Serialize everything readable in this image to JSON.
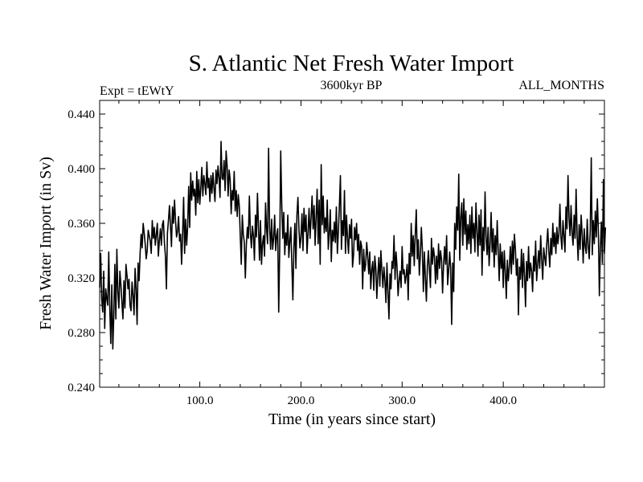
{
  "chart_data": {
    "type": "line",
    "title": "S. Atlantic Net Fresh Water Import",
    "subtitle_left": "Expt = tEWtY",
    "subtitle_center": "3600kyr BP",
    "subtitle_right": "ALL_MONTHS",
    "xlabel": "Time (in years since start)",
    "ylabel": "Fresh Water Import (in Sv)",
    "xlim": [
      1,
      500
    ],
    "ylim": [
      0.24,
      0.45
    ],
    "x_ticks": [
      100,
      200,
      300,
      400
    ],
    "x_tick_labels": [
      "100.0",
      "200.0",
      "300.0",
      "400.0"
    ],
    "y_ticks": [
      0.24,
      0.28,
      0.32,
      0.36,
      0.4,
      0.44
    ],
    "y_tick_labels": [
      "0.240",
      "0.280",
      "0.320",
      "0.360",
      "0.400",
      "0.440"
    ],
    "x_minor_step": 20,
    "y_minor_step": 0.01,
    "series": [
      {
        "name": "fresh water import",
        "x_start": 1,
        "x_step": 1,
        "values": [
          0.313,
          0.338,
          0.305,
          0.295,
          0.325,
          0.283,
          0.312,
          0.305,
          0.3,
          0.339,
          0.298,
          0.272,
          0.315,
          0.268,
          0.293,
          0.33,
          0.29,
          0.341,
          0.31,
          0.298,
          0.325,
          0.315,
          0.302,
          0.29,
          0.318,
          0.298,
          0.33,
          0.322,
          0.312,
          0.319,
          0.3,
          0.296,
          0.317,
          0.307,
          0.293,
          0.327,
          0.312,
          0.286,
          0.331,
          0.318,
          0.338,
          0.352,
          0.342,
          0.36,
          0.353,
          0.345,
          0.334,
          0.34,
          0.355,
          0.351,
          0.347,
          0.338,
          0.362,
          0.349,
          0.357,
          0.344,
          0.352,
          0.36,
          0.336,
          0.347,
          0.356,
          0.344,
          0.359,
          0.362,
          0.346,
          0.336,
          0.312,
          0.353,
          0.362,
          0.373,
          0.358,
          0.343,
          0.372,
          0.36,
          0.377,
          0.362,
          0.35,
          0.354,
          0.365,
          0.347,
          0.352,
          0.33,
          0.352,
          0.379,
          0.338,
          0.363,
          0.344,
          0.358,
          0.387,
          0.357,
          0.397,
          0.377,
          0.391,
          0.38,
          0.385,
          0.366,
          0.398,
          0.375,
          0.392,
          0.374,
          0.386,
          0.401,
          0.38,
          0.395,
          0.389,
          0.381,
          0.405,
          0.386,
          0.393,
          0.376,
          0.395,
          0.382,
          0.397,
          0.386,
          0.376,
          0.399,
          0.389,
          0.402,
          0.393,
          0.379,
          0.42,
          0.393,
          0.392,
          0.406,
          0.384,
          0.413,
          0.402,
          0.38,
          0.399,
          0.392,
          0.367,
          0.384,
          0.377,
          0.398,
          0.369,
          0.384,
          0.365,
          0.381,
          0.373,
          0.351,
          0.33,
          0.366,
          0.352,
          0.346,
          0.32,
          0.344,
          0.357,
          0.349,
          0.38,
          0.353,
          0.342,
          0.358,
          0.351,
          0.333,
          0.366,
          0.35,
          0.382,
          0.357,
          0.333,
          0.362,
          0.33,
          0.345,
          0.351,
          0.336,
          0.375,
          0.356,
          0.345,
          0.415,
          0.357,
          0.341,
          0.363,
          0.341,
          0.349,
          0.366,
          0.34,
          0.351,
          0.356,
          0.295,
          0.342,
          0.413,
          0.374,
          0.349,
          0.368,
          0.337,
          0.353,
          0.344,
          0.366,
          0.335,
          0.347,
          0.357,
          0.33,
          0.304,
          0.342,
          0.36,
          0.327,
          0.366,
          0.379,
          0.356,
          0.342,
          0.35,
          0.367,
          0.34,
          0.371,
          0.354,
          0.366,
          0.338,
          0.353,
          0.371,
          0.349,
          0.364,
          0.38,
          0.356,
          0.373,
          0.344,
          0.365,
          0.385,
          0.345,
          0.377,
          0.33,
          0.403,
          0.359,
          0.38,
          0.353,
          0.364,
          0.354,
          0.377,
          0.341,
          0.353,
          0.37,
          0.332,
          0.355,
          0.347,
          0.361,
          0.346,
          0.372,
          0.338,
          0.354,
          0.373,
          0.395,
          0.341,
          0.362,
          0.351,
          0.384,
          0.338,
          0.366,
          0.349,
          0.338,
          0.359,
          0.349,
          0.363,
          0.328,
          0.337,
          0.357,
          0.348,
          0.36,
          0.34,
          0.352,
          0.33,
          0.347,
          0.343,
          0.312,
          0.341,
          0.325,
          0.33,
          0.346,
          0.336,
          0.323,
          0.339,
          0.312,
          0.326,
          0.332,
          0.311,
          0.336,
          0.327,
          0.305,
          0.322,
          0.335,
          0.314,
          0.34,
          0.326,
          0.313,
          0.328,
          0.318,
          0.302,
          0.331,
          0.31,
          0.29,
          0.323,
          0.312,
          0.332,
          0.327,
          0.351,
          0.319,
          0.339,
          0.328,
          0.307,
          0.318,
          0.325,
          0.313,
          0.343,
          0.323,
          0.326,
          0.316,
          0.322,
          0.33,
          0.304,
          0.338,
          0.323,
          0.36,
          0.336,
          0.351,
          0.329,
          0.352,
          0.37,
          0.334,
          0.348,
          0.322,
          0.336,
          0.357,
          0.341,
          0.31,
          0.339,
          0.32,
          0.303,
          0.329,
          0.34,
          0.326,
          0.313,
          0.349,
          0.33,
          0.342,
          0.335,
          0.316,
          0.336,
          0.319,
          0.345,
          0.327,
          0.34,
          0.333,
          0.309,
          0.33,
          0.343,
          0.33,
          0.351,
          0.315,
          0.325,
          0.339,
          0.327,
          0.286,
          0.331,
          0.31,
          0.36,
          0.341,
          0.372,
          0.355,
          0.396,
          0.333,
          0.364,
          0.375,
          0.344,
          0.378,
          0.352,
          0.369,
          0.341,
          0.359,
          0.345,
          0.366,
          0.338,
          0.372,
          0.349,
          0.36,
          0.339,
          0.375,
          0.354,
          0.336,
          0.366,
          0.344,
          0.37,
          0.322,
          0.357,
          0.34,
          0.383,
          0.35,
          0.337,
          0.357,
          0.329,
          0.345,
          0.368,
          0.339,
          0.356,
          0.328,
          0.351,
          0.337,
          0.362,
          0.34,
          0.318,
          0.345,
          0.327,
          0.339,
          0.313,
          0.34,
          0.325,
          0.305,
          0.333,
          0.318,
          0.328,
          0.343,
          0.323,
          0.347,
          0.33,
          0.352,
          0.341,
          0.322,
          0.334,
          0.293,
          0.328,
          0.319,
          0.341,
          0.313,
          0.338,
          0.322,
          0.299,
          0.332,
          0.318,
          0.343,
          0.32,
          0.331,
          0.325,
          0.31,
          0.336,
          0.325,
          0.347,
          0.318,
          0.33,
          0.34,
          0.327,
          0.351,
          0.333,
          0.319,
          0.342,
          0.335,
          0.329,
          0.345,
          0.356,
          0.34,
          0.328,
          0.349,
          0.337,
          0.36,
          0.343,
          0.353,
          0.338,
          0.357,
          0.345,
          0.352,
          0.374,
          0.35,
          0.341,
          0.362,
          0.351,
          0.339,
          0.372,
          0.356,
          0.395,
          0.364,
          0.351,
          0.373,
          0.353,
          0.344,
          0.366,
          0.349,
          0.385,
          0.351,
          0.333,
          0.359,
          0.341,
          0.366,
          0.352,
          0.331,
          0.356,
          0.343,
          0.338,
          0.363,
          0.343,
          0.334,
          0.356,
          0.408,
          0.337,
          0.362,
          0.345,
          0.369,
          0.35,
          0.378,
          0.355,
          0.307,
          0.342,
          0.361,
          0.331,
          0.392,
          0.338,
          0.357
        ]
      }
    ]
  }
}
